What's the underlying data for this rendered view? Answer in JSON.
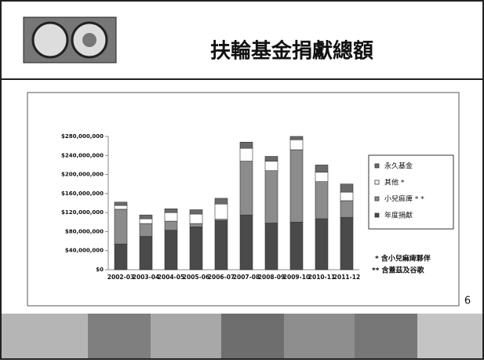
{
  "slide": {
    "title": "扶輪基金捐獻總額",
    "page_number": "6",
    "notes": [
      "* 含小兒痲痺夥伴",
      "** 含蓋茲及谷歌"
    ]
  },
  "chart_data": {
    "type": "stacked-bar",
    "categories": [
      "2002-03",
      "2003-04",
      "2004-05",
      "2005-06",
      "2006-07",
      "2007-08",
      "2008-09",
      "2009-10",
      "2010-11",
      "2011-12"
    ],
    "series": [
      {
        "name": "年度捐獻",
        "color": "#4a4a4a",
        "values": [
          54000000,
          70000000,
          83000000,
          90000000,
          103000000,
          115000000,
          98000000,
          100000000,
          107000000,
          110000000
        ]
      },
      {
        "name": "小兒痲痺 * *",
        "color": "#8c8c8c",
        "values": [
          73000000,
          27000000,
          19000000,
          7000000,
          3000000,
          113000000,
          110000000,
          152000000,
          78000000,
          35000000
        ]
      },
      {
        "name": "其他 *",
        "color": "#ffffff",
        "values": [
          8000000,
          10000000,
          18000000,
          20000000,
          32000000,
          27000000,
          20000000,
          21000000,
          20000000,
          18000000
        ]
      },
      {
        "name": "永久基金",
        "color": "#6a6a6a",
        "values": [
          7000000,
          8000000,
          8000000,
          9000000,
          12000000,
          13000000,
          10000000,
          7000000,
          15000000,
          17000000
        ]
      }
    ],
    "ylim": [
      0,
      280000000
    ],
    "yticks": [
      {
        "value": 0,
        "label": "$0"
      },
      {
        "value": 40000000,
        "label": "$40,000,000"
      },
      {
        "value": 80000000,
        "label": "$80,000,000"
      },
      {
        "value": 120000000,
        "label": "$120,000,000"
      },
      {
        "value": 160000000,
        "label": "$160,000,000"
      },
      {
        "value": 200000000,
        "label": "$200,000,000"
      },
      {
        "value": 240000000,
        "label": "$240,000,000"
      },
      {
        "value": 280000000,
        "label": "$280,000,000"
      }
    ],
    "legend": "right"
  }
}
